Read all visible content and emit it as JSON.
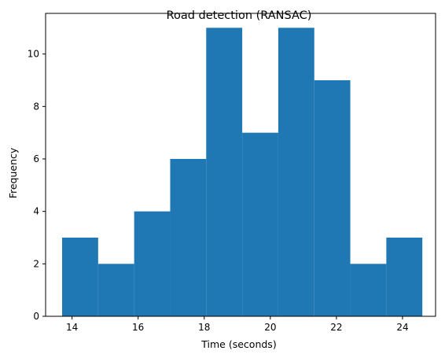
{
  "chart_data": {
    "type": "bar",
    "title": "Road detection (RANSAC)",
    "xlabel": "Time (seconds)",
    "ylabel": "Frequency",
    "xlim": [
      13.2,
      25.0
    ],
    "ylim": [
      0,
      11.55
    ],
    "xticks": [
      14,
      16,
      18,
      20,
      22,
      24
    ],
    "yticks": [
      0,
      2,
      4,
      6,
      8,
      10
    ],
    "bins": [
      {
        "x0": 13.7,
        "x1": 14.79,
        "value": 3
      },
      {
        "x0": 14.79,
        "x1": 15.88,
        "value": 2
      },
      {
        "x0": 15.88,
        "x1": 16.97,
        "value": 4
      },
      {
        "x0": 16.97,
        "x1": 18.06,
        "value": 6
      },
      {
        "x0": 18.06,
        "x1": 19.15,
        "value": 11
      },
      {
        "x0": 19.15,
        "x1": 20.24,
        "value": 7
      },
      {
        "x0": 20.24,
        "x1": 21.33,
        "value": 11
      },
      {
        "x0": 21.33,
        "x1": 22.42,
        "value": 9
      },
      {
        "x0": 22.42,
        "x1": 23.51,
        "value": 2
      },
      {
        "x0": 23.51,
        "x1": 24.6,
        "value": 3
      }
    ],
    "bar_color": "#1f77b4",
    "grid": false,
    "legend": "none"
  }
}
